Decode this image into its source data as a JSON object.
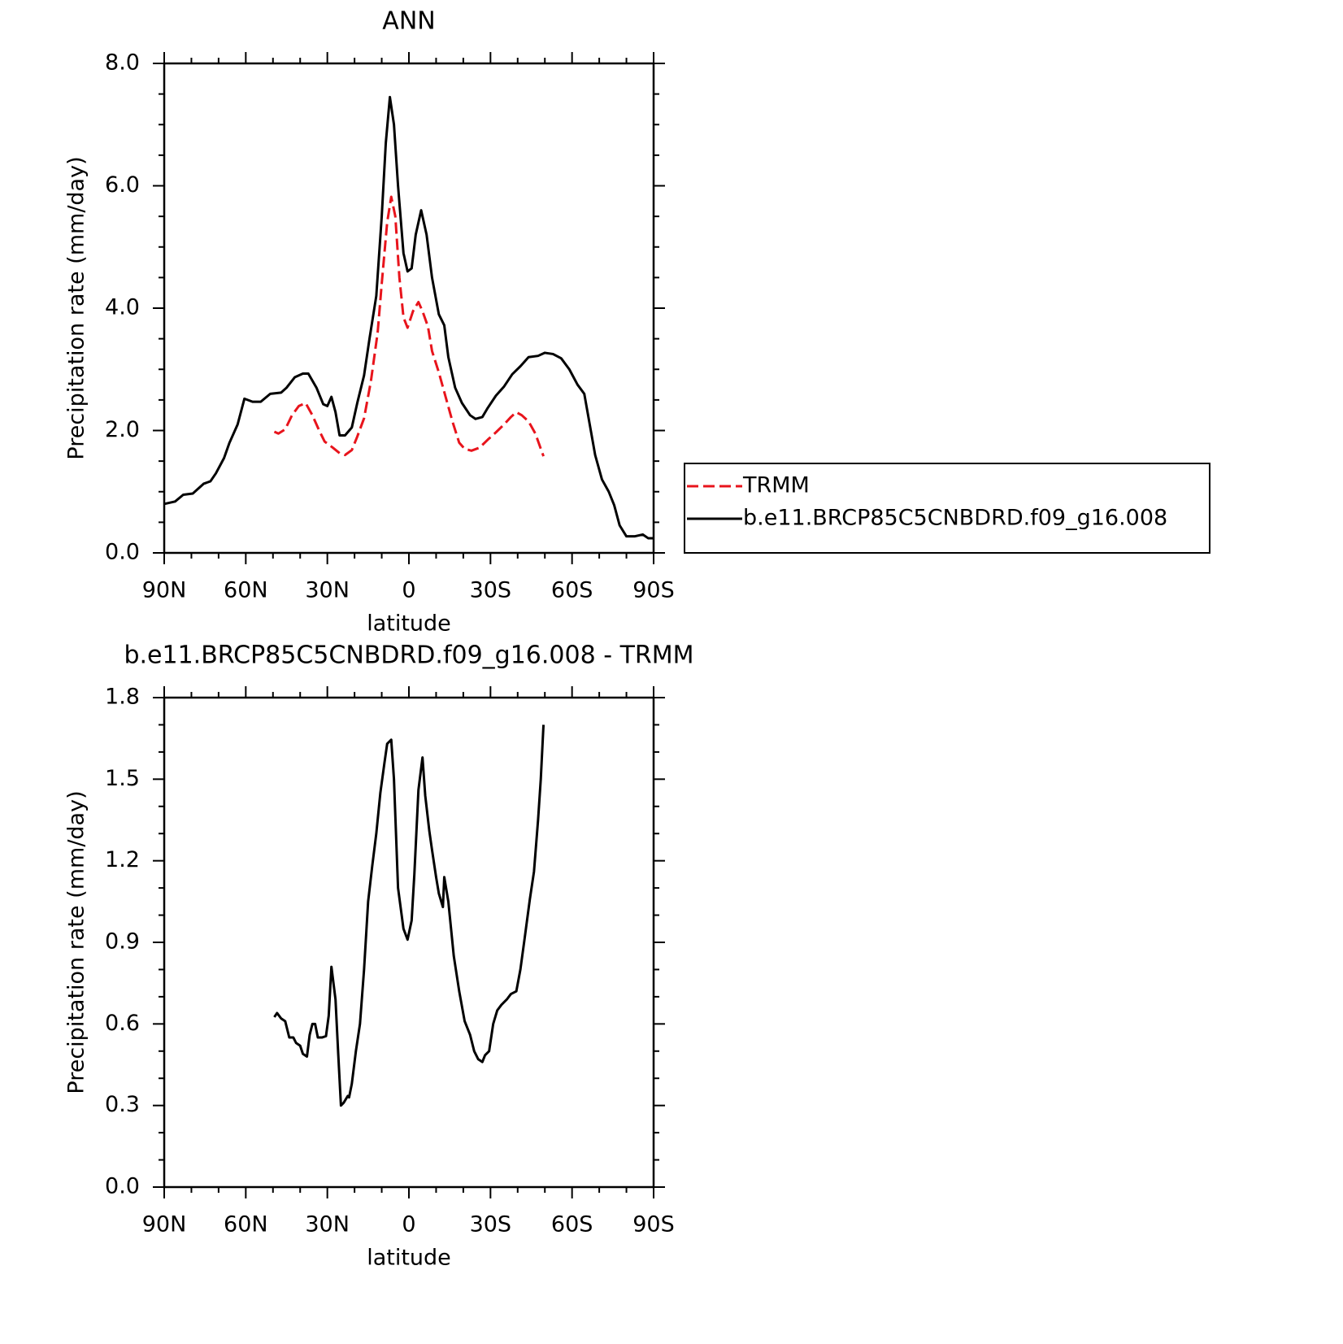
{
  "chart_data": [
    {
      "type": "line",
      "title": "ANN",
      "xlabel": "latitude",
      "ylabel": "Precipitation rate (mm/day)",
      "xlim": [
        90,
        -90
      ],
      "xticks": [
        {
          "value": 90,
          "label": "90N"
        },
        {
          "value": 60,
          "label": "60N"
        },
        {
          "value": 30,
          "label": "30N"
        },
        0,
        {
          "value": -30,
          "label": "30S"
        },
        {
          "value": -60,
          "label": "60S"
        },
        {
          "value": -90,
          "label": "90S"
        }
      ],
      "xminorticks": [
        80,
        70,
        50,
        40,
        20,
        10,
        -10,
        -20,
        -40,
        -50,
        -70,
        -80
      ],
      "ylim": [
        0,
        8
      ],
      "yticks": [
        {
          "value": 0,
          "label": "0.0"
        },
        {
          "value": 2,
          "label": "2.0"
        },
        {
          "value": 4,
          "label": "4.0"
        },
        {
          "value": 6,
          "label": "6.0"
        },
        {
          "value": 8,
          "label": "8.0"
        }
      ],
      "yminorticks": [
        0.5,
        1,
        1.5,
        2.5,
        3,
        3.5,
        4.5,
        5,
        5.5,
        6.5,
        7,
        7.5
      ],
      "legend": "right",
      "series": [
        {
          "name": "TRMM",
          "color": "#e8141c",
          "dashed": true,
          "x": [
            49.5,
            48,
            45.5,
            43,
            40.5,
            38,
            35.5,
            33,
            31,
            28,
            25.5,
            23.5,
            21,
            19,
            16.5,
            14,
            11.5,
            10,
            8,
            6.5,
            5,
            3.5,
            2,
            0.5,
            -1.5,
            -3.5,
            -5,
            -7,
            -8.5,
            -11,
            -13.5,
            -16,
            -18.5,
            -20.5,
            -23,
            -26,
            -29,
            -32,
            -35,
            -37.5,
            -39.5,
            -41.5,
            -44,
            -46.5,
            -49.5
          ],
          "values": [
            1.98,
            1.95,
            2.02,
            2.25,
            2.4,
            2.45,
            2.25,
            2.0,
            1.82,
            1.72,
            1.63,
            1.6,
            1.68,
            1.9,
            2.2,
            2.8,
            3.6,
            4.4,
            5.4,
            5.82,
            5.5,
            4.5,
            3.85,
            3.68,
            3.95,
            4.1,
            3.95,
            3.7,
            3.3,
            2.95,
            2.55,
            2.15,
            1.8,
            1.7,
            1.67,
            1.72,
            1.85,
            1.97,
            2.1,
            2.22,
            2.3,
            2.25,
            2.15,
            1.95,
            1.58
          ]
        },
        {
          "name": "b.e11.BRCP85C5CNBDRD.f09_g16.008",
          "color": "#000000",
          "dashed": false,
          "x": [
            90,
            86,
            83,
            79.5,
            75.5,
            73,
            71,
            68,
            66,
            63,
            60.5,
            57.5,
            54.5,
            51,
            47,
            45,
            42,
            39,
            37,
            34,
            31.5,
            30,
            28.5,
            27,
            25.5,
            23.5,
            21,
            19,
            16.5,
            14.5,
            12,
            10,
            8.5,
            7,
            5.5,
            4,
            2,
            0.5,
            -1,
            -2.5,
            -4.5,
            -6.5,
            -8.5,
            -11,
            -13,
            -14.5,
            -17,
            -19.5,
            -22.5,
            -24.5,
            -27,
            -29,
            -32,
            -35,
            -38,
            -41,
            -44,
            -47.5,
            -50,
            -53,
            -56,
            -59,
            -62,
            -64.5,
            -66.5,
            -68.5,
            -71,
            -73.5,
            -75.5,
            -77.5,
            -80,
            -83,
            -86,
            -88,
            -90
          ],
          "values": [
            0.8,
            0.84,
            0.95,
            0.97,
            1.13,
            1.17,
            1.3,
            1.55,
            1.8,
            2.1,
            2.52,
            2.47,
            2.47,
            2.6,
            2.62,
            2.7,
            2.87,
            2.93,
            2.93,
            2.7,
            2.43,
            2.4,
            2.55,
            2.3,
            1.92,
            1.92,
            2.05,
            2.45,
            2.9,
            3.5,
            4.2,
            5.5,
            6.7,
            7.45,
            7.0,
            6.0,
            4.9,
            4.6,
            4.65,
            5.2,
            5.6,
            5.2,
            4.5,
            3.9,
            3.72,
            3.2,
            2.7,
            2.45,
            2.25,
            2.19,
            2.22,
            2.37,
            2.57,
            2.72,
            2.92,
            3.05,
            3.2,
            3.22,
            3.27,
            3.25,
            3.18,
            3.0,
            2.75,
            2.6,
            2.1,
            1.6,
            1.2,
            1.0,
            0.78,
            0.45,
            0.27,
            0.27,
            0.3,
            0.24,
            0.24
          ]
        }
      ]
    },
    {
      "type": "line",
      "title": "b.e11.BRCP85C5CNBDRD.f09_g16.008 - TRMM",
      "xlabel": "latitude",
      "ylabel": "Precipitation rate (mm/day)",
      "xlim": [
        90,
        -90
      ],
      "xticks": [
        {
          "value": 90,
          "label": "90N"
        },
        {
          "value": 60,
          "label": "60N"
        },
        {
          "value": 30,
          "label": "30N"
        },
        0,
        {
          "value": -30,
          "label": "30S"
        },
        {
          "value": -60,
          "label": "60S"
        },
        {
          "value": -90,
          "label": "90S"
        }
      ],
      "xminorticks": [
        80,
        70,
        50,
        40,
        20,
        10,
        -10,
        -20,
        -40,
        -50,
        -70,
        -80
      ],
      "ylim": [
        0,
        1.8
      ],
      "yticks": [
        {
          "value": 0,
          "label": "0.0"
        },
        0.3,
        0.6,
        0.9,
        1.2,
        1.5,
        1.8
      ],
      "yminorticks": [
        0.1,
        0.2,
        0.4,
        0.5,
        0.7,
        0.8,
        1.0,
        1.1,
        1.3,
        1.4,
        1.6,
        1.7
      ],
      "series": [
        {
          "color": "#000000",
          "dashed": false,
          "x": [
            49.5,
            48.5,
            47,
            45.5,
            44,
            42.5,
            41.5,
            40,
            39,
            37.5,
            36.5,
            35.5,
            34.5,
            33.5,
            32,
            30.5,
            29.5,
            28.5,
            27,
            26,
            25,
            24,
            22.5,
            22,
            21,
            19.5,
            18,
            16.5,
            15,
            13.5,
            12,
            10.5,
            9,
            8,
            6.5,
            5.5,
            4,
            2,
            0.5,
            -1,
            -2,
            -3.5,
            -5,
            -6,
            -7.5,
            -8.5,
            -10,
            -11,
            -12.5,
            -13,
            -14.5,
            -16.5,
            -18.5,
            -20.5,
            -22.5,
            -24,
            -25.5,
            -27,
            -28,
            -29.5,
            -31,
            -32.5,
            -34,
            -36,
            -37.5,
            -39.5,
            -41,
            -42.5,
            -44.5,
            -46,
            -47.5,
            -48.5,
            -49.5
          ],
          "values": [
            0.625,
            0.64,
            0.62,
            0.61,
            0.55,
            0.55,
            0.53,
            0.52,
            0.49,
            0.48,
            0.56,
            0.6,
            0.6,
            0.55,
            0.55,
            0.555,
            0.63,
            0.81,
            0.69,
            0.49,
            0.3,
            0.31,
            0.335,
            0.33,
            0.38,
            0.5,
            0.6,
            0.8,
            1.05,
            1.18,
            1.3,
            1.45,
            1.56,
            1.63,
            1.645,
            1.5,
            1.1,
            0.95,
            0.91,
            0.98,
            1.15,
            1.46,
            1.58,
            1.44,
            1.31,
            1.24,
            1.14,
            1.08,
            1.03,
            1.14,
            1.05,
            0.85,
            0.72,
            0.61,
            0.56,
            0.5,
            0.47,
            0.46,
            0.485,
            0.5,
            0.6,
            0.65,
            0.67,
            0.69,
            0.71,
            0.72,
            0.8,
            0.91,
            1.06,
            1.16,
            1.35,
            1.5,
            1.7
          ]
        }
      ]
    }
  ]
}
